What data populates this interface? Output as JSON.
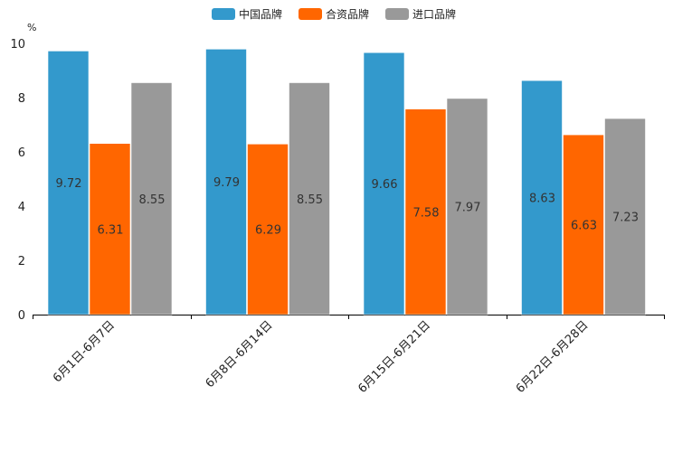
{
  "chart_data": {
    "type": "bar",
    "title": "",
    "unit_label": "%",
    "xlabel": "",
    "ylabel": "%",
    "ylim": [
      0,
      10
    ],
    "yticks": [
      0,
      2,
      4,
      6,
      8,
      10
    ],
    "grid": false,
    "legend_position": "top-center",
    "categories": [
      "6月1日-6月7日",
      "6月8日-6月14日",
      "6月15日-6月21日",
      "6月22日-6月28日"
    ],
    "series": [
      {
        "name": "中国品牌",
        "color": "#3399cc",
        "values": [
          9.72,
          9.79,
          9.66,
          8.63
        ]
      },
      {
        "name": "合资品牌",
        "color": "#ff6600",
        "values": [
          6.31,
          6.29,
          7.58,
          6.63
        ]
      },
      {
        "name": "进口品牌",
        "color": "#999999",
        "values": [
          8.55,
          8.55,
          7.97,
          7.23
        ]
      }
    ]
  }
}
